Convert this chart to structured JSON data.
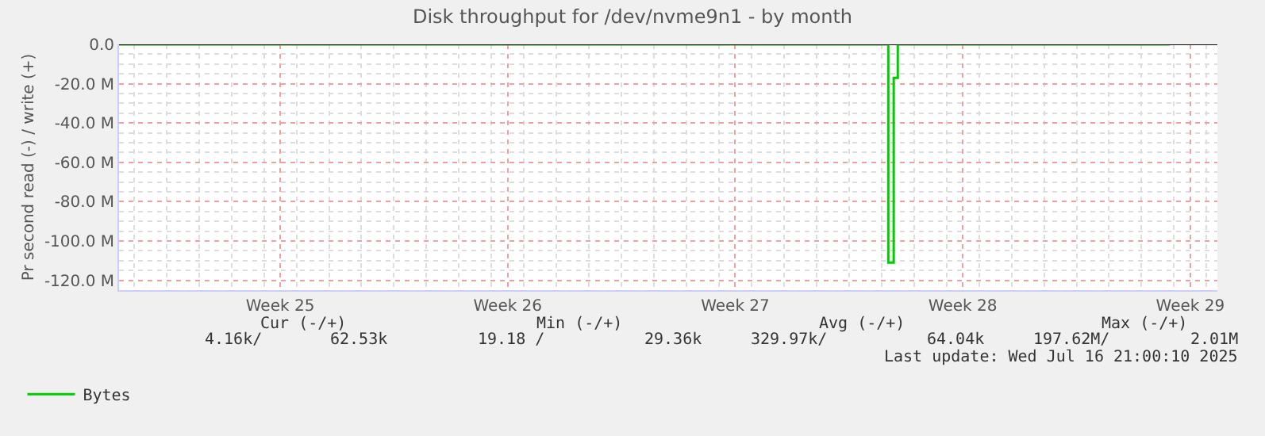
{
  "chart_data": {
    "type": "step",
    "title": "Disk throughput for /dev/nvme9n1 - by month",
    "ylabel": "Pr second read (-) / write (+)",
    "x": [
      "2025-06-14T13:00",
      "2025-07-08T04:00",
      "2025-07-08T05:00",
      "2025-07-08T09:00",
      "2025-07-08T12:00",
      "2025-07-16T21:00"
    ],
    "series": [
      {
        "name": "Bytes",
        "color": "#00cc00",
        "values": [
          0,
          0,
          -111000000,
          -17000000,
          0,
          0
        ]
      }
    ],
    "xlim": [
      "2025-06-14T13:00",
      "2025-07-18T08:00"
    ],
    "xticks": [
      {
        "value": "2025-06-19T12:00",
        "label": "Week 25"
      },
      {
        "value": "2025-06-26T12:00",
        "label": "Week 26"
      },
      {
        "value": "2025-07-03T12:00",
        "label": "Week 27"
      },
      {
        "value": "2025-07-10T12:00",
        "label": "Week 28"
      },
      {
        "value": "2025-07-17T12:00",
        "label": "Week 29"
      }
    ],
    "ylim": [
      -125000000,
      0
    ],
    "yticks": [
      {
        "value": 0,
        "label": "0.0"
      },
      {
        "value": -20000000,
        "label": "-20.0 M"
      },
      {
        "value": -40000000,
        "label": "-40.0 M"
      },
      {
        "value": -60000000,
        "label": "-60.0 M"
      },
      {
        "value": -80000000,
        "label": "-80.0 M"
      },
      {
        "value": -100000000,
        "label": "-100.0 M"
      },
      {
        "value": -120000000,
        "label": "-120.0 M"
      }
    ],
    "ref_lines": [
      {
        "axis": "y",
        "value": 0,
        "color": "#000000"
      }
    ],
    "grid": true,
    "legend": "bottom left",
    "annotations": [
      "Cur (-/+)",
      "Min (-/+)",
      "Avg (-/+)",
      "Max (-/+)",
      "4.16k/",
      "62.53k",
      "19.18 /",
      "29.36k",
      "329.97k/",
      "64.04k",
      "197.62M/",
      "2.01M",
      "Last update: Wed Jul 16 21:00:10 2025"
    ]
  }
}
